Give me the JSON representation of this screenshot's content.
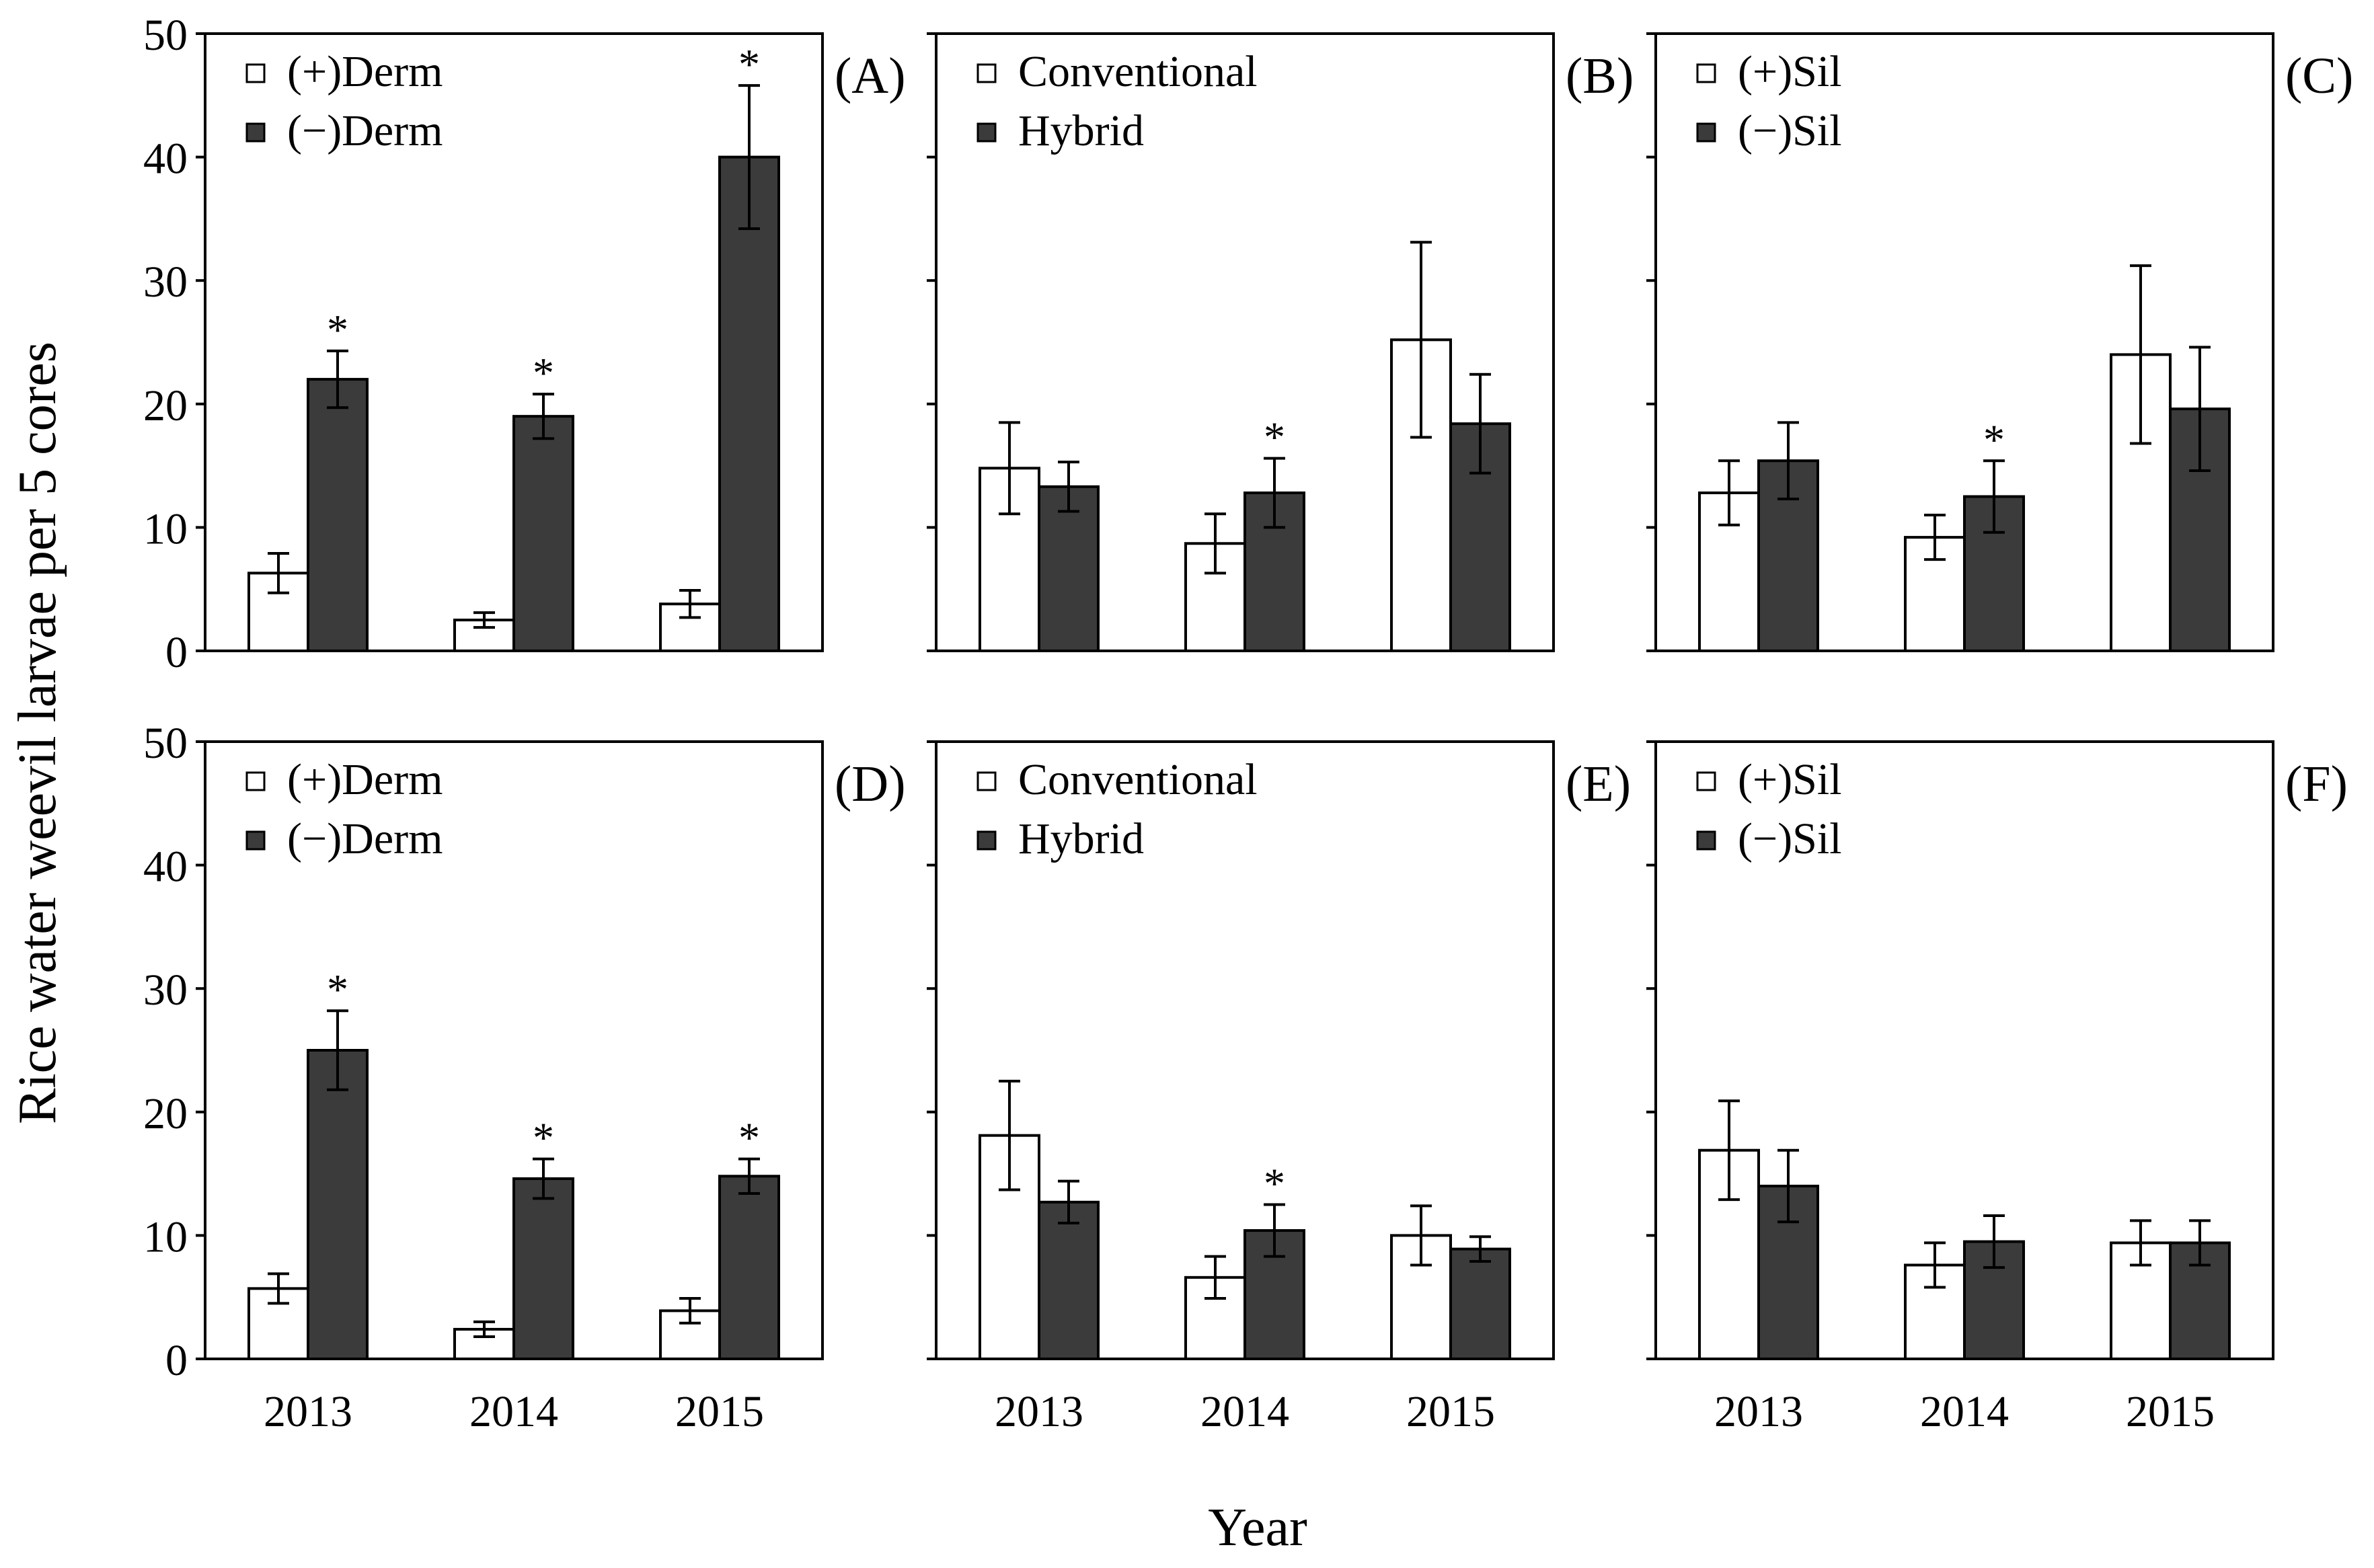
{
  "figure": {
    "ylabel": "Rice water weevil larvae per 5 cores",
    "xlabel": "Year",
    "fill_light": "#ffffff",
    "fill_dark": "#3b3b3b",
    "stroke": "#000000"
  },
  "chart_data": [
    {
      "panel": "(A)",
      "type": "bar",
      "categories": [
        "2013",
        "2014",
        "2015"
      ],
      "ylim": [
        0,
        50
      ],
      "yticks": [
        0,
        10,
        20,
        30,
        40,
        50
      ],
      "series": [
        {
          "name": "(+)Derm",
          "values": [
            6.3,
            2.5,
            3.8
          ],
          "err": [
            1.6,
            0.6,
            1.1
          ],
          "sig": [
            false,
            false,
            false
          ]
        },
        {
          "name": "(−)Derm",
          "values": [
            22.0,
            19.0,
            40.0
          ],
          "err": [
            2.3,
            1.8,
            5.8
          ],
          "sig": [
            true,
            true,
            true
          ]
        }
      ]
    },
    {
      "panel": "(B)",
      "type": "bar",
      "categories": [
        "2013",
        "2014",
        "2015"
      ],
      "ylim": [
        0,
        50
      ],
      "yticks": [
        0,
        10,
        20,
        30,
        40,
        50
      ],
      "series": [
        {
          "name": "Conventional",
          "values": [
            14.8,
            8.7,
            25.2
          ],
          "err": [
            3.7,
            2.4,
            7.9
          ],
          "sig": [
            false,
            false,
            false
          ]
        },
        {
          "name": "Hybrid",
          "values": [
            13.3,
            12.8,
            18.4
          ],
          "err": [
            2.0,
            2.8,
            4.0
          ],
          "sig": [
            false,
            true,
            false
          ]
        }
      ]
    },
    {
      "panel": "(C)",
      "type": "bar",
      "categories": [
        "2013",
        "2014",
        "2015"
      ],
      "ylim": [
        0,
        50
      ],
      "yticks": [
        0,
        10,
        20,
        30,
        40,
        50
      ],
      "series": [
        {
          "name": "(+)Sil",
          "values": [
            12.8,
            9.2,
            24.0
          ],
          "err": [
            2.6,
            1.8,
            7.2
          ],
          "sig": [
            false,
            false,
            false
          ]
        },
        {
          "name": "(−)Sil",
          "values": [
            15.4,
            12.5,
            19.6
          ],
          "err": [
            3.1,
            2.9,
            5.0
          ],
          "sig": [
            false,
            true,
            false
          ]
        }
      ]
    },
    {
      "panel": "(D)",
      "type": "bar",
      "categories": [
        "2013",
        "2014",
        "2015"
      ],
      "ylim": [
        0,
        50
      ],
      "yticks": [
        0,
        10,
        20,
        30,
        40,
        50
      ],
      "series": [
        {
          "name": "(+)Derm",
          "values": [
            5.7,
            2.4,
            3.9
          ],
          "err": [
            1.2,
            0.6,
            1.0
          ],
          "sig": [
            false,
            false,
            false
          ]
        },
        {
          "name": "(−)Derm",
          "values": [
            25.0,
            14.6,
            14.8
          ],
          "err": [
            3.2,
            1.6,
            1.4
          ],
          "sig": [
            true,
            true,
            true
          ]
        }
      ]
    },
    {
      "panel": "(E)",
      "type": "bar",
      "categories": [
        "2013",
        "2014",
        "2015"
      ],
      "ylim": [
        0,
        50
      ],
      "yticks": [
        0,
        10,
        20,
        30,
        40,
        50
      ],
      "series": [
        {
          "name": "Conventional",
          "values": [
            18.1,
            6.6,
            10.0
          ],
          "err": [
            4.4,
            1.7,
            2.4
          ],
          "sig": [
            false,
            false,
            false
          ]
        },
        {
          "name": "Hybrid",
          "values": [
            12.7,
            10.4,
            8.9
          ],
          "err": [
            1.7,
            2.1,
            1.0
          ],
          "sig": [
            false,
            true,
            false
          ]
        }
      ]
    },
    {
      "panel": "(F)",
      "type": "bar",
      "categories": [
        "2013",
        "2014",
        "2015"
      ],
      "ylim": [
        0,
        50
      ],
      "yticks": [
        0,
        10,
        20,
        30,
        40,
        50
      ],
      "series": [
        {
          "name": "(+)Sil",
          "values": [
            16.9,
            7.6,
            9.4
          ],
          "err": [
            4.0,
            1.8,
            1.8
          ],
          "sig": [
            false,
            false,
            false
          ]
        },
        {
          "name": "(−)Sil",
          "values": [
            14.0,
            9.5,
            9.4
          ],
          "err": [
            2.9,
            2.1,
            1.8
          ],
          "sig": [
            false,
            false,
            false
          ]
        }
      ]
    }
  ]
}
